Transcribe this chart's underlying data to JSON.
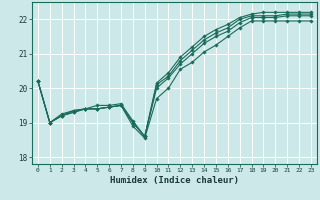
{
  "xlabel": "Humidex (Indice chaleur)",
  "bg_color": "#cce8e8",
  "grid_color": "#ffffff",
  "line_color": "#1a6b5a",
  "xlim": [
    -0.5,
    23.5
  ],
  "ylim": [
    17.8,
    22.5
  ],
  "yticks": [
    18,
    19,
    20,
    21,
    22
  ],
  "xticks": [
    0,
    1,
    2,
    3,
    4,
    5,
    6,
    7,
    8,
    9,
    10,
    11,
    12,
    13,
    14,
    15,
    16,
    17,
    18,
    19,
    20,
    21,
    22,
    23
  ],
  "lines": [
    [
      20.2,
      19.0,
      19.2,
      19.35,
      19.4,
      19.4,
      19.45,
      19.5,
      18.9,
      18.55,
      19.7,
      20.0,
      20.55,
      20.75,
      21.05,
      21.25,
      21.5,
      21.75,
      21.95,
      21.95,
      21.95,
      21.95,
      21.95,
      21.95
    ],
    [
      20.2,
      19.0,
      19.2,
      19.3,
      19.4,
      19.4,
      19.45,
      19.5,
      19.0,
      18.6,
      20.0,
      20.3,
      20.7,
      21.0,
      21.3,
      21.5,
      21.65,
      21.9,
      22.05,
      22.05,
      22.05,
      22.1,
      22.1,
      22.1
    ],
    [
      20.2,
      19.0,
      19.2,
      19.3,
      19.4,
      19.4,
      19.45,
      19.5,
      19.0,
      18.6,
      20.1,
      20.35,
      20.8,
      21.1,
      21.4,
      21.6,
      21.75,
      22.0,
      22.1,
      22.1,
      22.1,
      22.15,
      22.15,
      22.15
    ],
    [
      20.2,
      19.0,
      19.25,
      19.35,
      19.4,
      19.5,
      19.5,
      19.55,
      19.05,
      18.6,
      20.15,
      20.45,
      20.9,
      21.2,
      21.5,
      21.7,
      21.85,
      22.05,
      22.15,
      22.2,
      22.2,
      22.2,
      22.2,
      22.2
    ]
  ]
}
